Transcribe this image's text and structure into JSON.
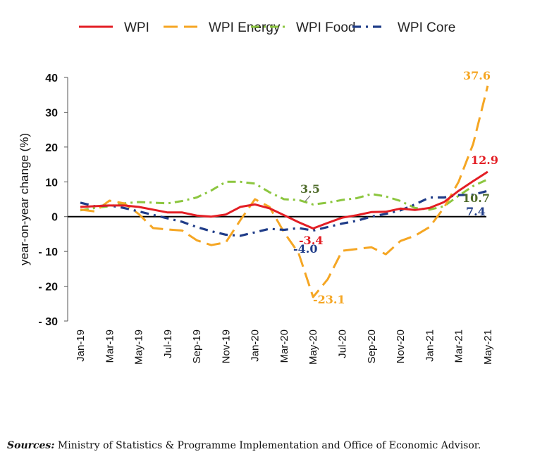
{
  "chart_data": {
    "type": "line",
    "ylabel": "year-on-year change (%)",
    "ylim": [
      -30,
      40
    ],
    "yticks": [
      40,
      30,
      20,
      10,
      0,
      -10,
      -20,
      -30
    ],
    "ytick_labels": [
      "40",
      "30",
      "20",
      "10",
      "0",
      "- 10",
      "- 20",
      "- 30"
    ],
    "grid": false,
    "legend_position": "top",
    "categories": [
      "Jan-19",
      "Feb-19",
      "Mar-19",
      "Apr-19",
      "May-19",
      "Jun-19",
      "Jul-19",
      "Aug-19",
      "Sep-19",
      "Oct-19",
      "Nov-19",
      "Dec-19",
      "Jan-20",
      "Feb-20",
      "Mar-20",
      "Apr-20",
      "May-20",
      "Jun-20",
      "Jul-20",
      "Aug-20",
      "Sep-20",
      "Oct-20",
      "Nov-20",
      "Dec-20",
      "Jan-21",
      "Feb-21",
      "Mar-21",
      "Apr-21",
      "May-21"
    ],
    "x_tick_labels": [
      "Jan-19",
      "Mar-19",
      "May-19",
      "Jul-19",
      "Sep-19",
      "Nov-19",
      "Jan-20",
      "Mar-20",
      "May-20",
      "Jul-20",
      "Sep-20",
      "Nov-20",
      "Jan-21",
      "Mar-21",
      "May-21"
    ],
    "series": [
      {
        "name": "WPI",
        "color": "#e31e24",
        "values": [
          2.8,
          3.0,
          3.2,
          3.2,
          2.8,
          2.0,
          1.2,
          1.2,
          0.3,
          0.0,
          0.6,
          2.8,
          3.5,
          2.4,
          0.4,
          -1.6,
          -3.4,
          -1.8,
          -0.3,
          0.4,
          1.3,
          1.4,
          2.3,
          1.9,
          2.5,
          4.2,
          7.4,
          10.2,
          12.9
        ]
      },
      {
        "name": "WPI Energy",
        "color": "#f5a623",
        "values": [
          2.0,
          1.5,
          4.6,
          3.8,
          0.8,
          -3.3,
          -3.7,
          -4.0,
          -6.8,
          -8.2,
          -7.4,
          -1.0,
          5.0,
          2.8,
          -4.5,
          -10.5,
          -23.1,
          -18.0,
          -9.8,
          -9.3,
          -8.8,
          -10.8,
          -7.0,
          -5.5,
          -3.0,
          2.6,
          10.0,
          20.9,
          37.6
        ]
      },
      {
        "name": "WPI Food",
        "color": "#8cc63f",
        "values": [
          1.8,
          2.5,
          3.0,
          3.8,
          4.2,
          4.0,
          3.8,
          4.5,
          5.5,
          7.5,
          10.0,
          10.0,
          9.5,
          7.0,
          5.0,
          4.8,
          3.5,
          4.0,
          4.8,
          5.3,
          6.5,
          5.8,
          4.5,
          2.5,
          2.0,
          3.0,
          6.0,
          8.8,
          10.7
        ]
      },
      {
        "name": "WPI Core",
        "color": "#1f3c88",
        "values": [
          4.0,
          3.0,
          3.2,
          2.5,
          1.5,
          0.5,
          -0.5,
          -1.5,
          -3.0,
          -4.2,
          -5.2,
          -5.5,
          -4.5,
          -3.5,
          -3.8,
          -3.3,
          -4.0,
          -3.0,
          -2.0,
          -1.2,
          0.0,
          0.8,
          1.8,
          3.5,
          5.5,
          5.5,
          6.2,
          6.3,
          7.4
        ]
      }
    ],
    "annotations": [
      {
        "text": "37.6",
        "series": "WPI Energy"
      },
      {
        "text": "12.9",
        "series": "WPI"
      },
      {
        "text": "10.7",
        "series": "WPI Food"
      },
      {
        "text": "7.4",
        "series": "WPI Core"
      },
      {
        "text": "3.5",
        "series": "WPI Food"
      },
      {
        "text": "-3.4",
        "series": "WPI"
      },
      {
        "text": "-4.0",
        "series": "WPI Core"
      },
      {
        "text": "-23.1",
        "series": "WPI Energy"
      }
    ],
    "annotation_colors": {
      "WPI": "#e31e24",
      "WPI Energy": "#f5a623",
      "WPI Food": "#4e6b2a",
      "WPI Core": "#1f3c88"
    }
  },
  "source": {
    "prefix": "Sources:",
    "text": " Ministry of Statistics & Programme Implementation and Office of Economic Advisor."
  }
}
